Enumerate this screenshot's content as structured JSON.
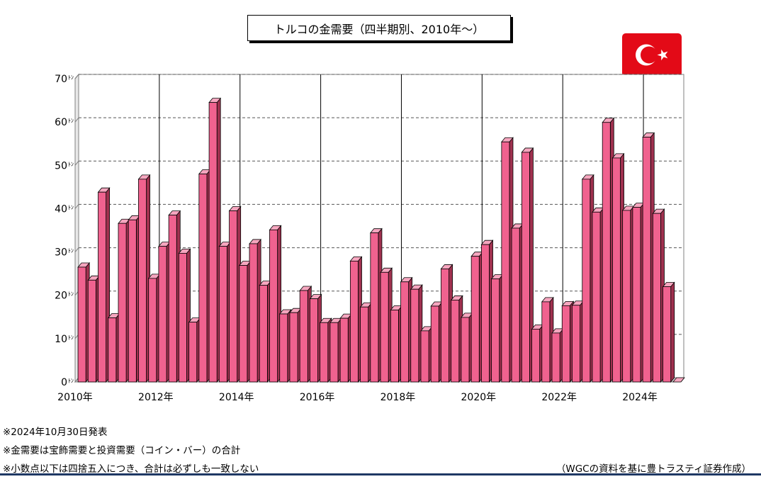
{
  "title": "トルコの金需要（四半期別、2010年～）",
  "flag_icon": "turkey-flag-icon",
  "colors": {
    "bar_front": "#f0628f",
    "bar_side": "#a0314f",
    "bar_top": "#f6a6bf",
    "flag_red": "#e30a17"
  },
  "notes": [
    "※2024年10月30日発表",
    "※金需要は宝飾需要と投資需要（コイン・バー）の合計",
    "※小数点以下は四捨五入につき、合計は必ずしも一致しない"
  ],
  "source": "（WGCの資料を基に豊トラスティ証券作成）",
  "chart_data": {
    "type": "bar",
    "title": "トルコの金需要（四半期別、2010年～）",
    "unit": "ﾄﾝ",
    "ylim": [
      0,
      70
    ],
    "yticks": [
      0,
      10,
      20,
      30,
      40,
      50,
      60,
      70
    ],
    "grid": true,
    "x_labels": [
      "2010年",
      "2012年",
      "2014年",
      "2016年",
      "2018年",
      "2020年",
      "2022年",
      "2024年"
    ],
    "categories": [
      "2010Q1",
      "2010Q2",
      "2010Q3",
      "2010Q4",
      "2011Q1",
      "2011Q2",
      "2011Q3",
      "2011Q4",
      "2012Q1",
      "2012Q2",
      "2012Q3",
      "2012Q4",
      "2013Q1",
      "2013Q2",
      "2013Q3",
      "2013Q4",
      "2014Q1",
      "2014Q2",
      "2014Q3",
      "2014Q4",
      "2015Q1",
      "2015Q2",
      "2015Q3",
      "2015Q4",
      "2016Q1",
      "2016Q2",
      "2016Q3",
      "2016Q4",
      "2017Q1",
      "2017Q2",
      "2017Q3",
      "2017Q4",
      "2018Q1",
      "2018Q2",
      "2018Q3",
      "2018Q4",
      "2019Q1",
      "2019Q2",
      "2019Q3",
      "2019Q4",
      "2020Q1",
      "2020Q2",
      "2020Q3",
      "2020Q4",
      "2021Q1",
      "2021Q2",
      "2021Q3",
      "2021Q4",
      "2022Q1",
      "2022Q2",
      "2022Q3",
      "2022Q4",
      "2023Q1",
      "2023Q2",
      "2023Q3",
      "2023Q4",
      "2024Q1",
      "2024Q2",
      "2024Q3",
      "2024Q4"
    ],
    "values": [
      26.5,
      23.5,
      43.8,
      14.8,
      36.6,
      37.4,
      46.8,
      23.9,
      31.3,
      38.5,
      29.7,
      13.8,
      48.0,
      64.5,
      31.3,
      39.5,
      26.9,
      31.9,
      22.3,
      35.1,
      15.7,
      16.0,
      21.1,
      19.2,
      13.7,
      13.7,
      14.7,
      27.9,
      17.3,
      34.4,
      25.3,
      16.6,
      23.1,
      21.4,
      11.8,
      17.5,
      26.1,
      18.9,
      14.9,
      29.0,
      31.7,
      23.8,
      55.4,
      35.5,
      53.0,
      12.2,
      18.5,
      11.3,
      17.6,
      17.7,
      46.8,
      39.2,
      59.9,
      51.7,
      39.6,
      40.3,
      56.5,
      38.9,
      22.0,
      0
    ]
  }
}
